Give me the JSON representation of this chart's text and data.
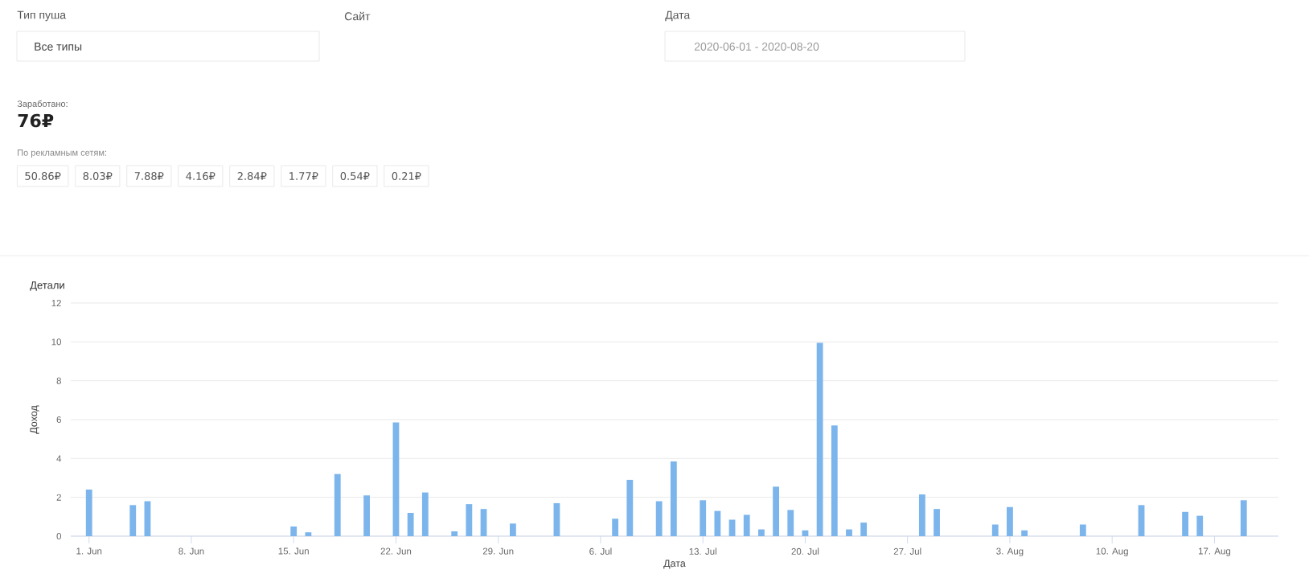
{
  "chart_data": [
    {
      "type": "other",
      "annotations": [
        "Тип пуша",
        "Все типы",
        "Сайт",
        "Дата",
        "2020-06-01 - 2020-08-20",
        "Заработано:",
        "76₽",
        "По рекламным сетям:",
        "50.86₽",
        "8.03₽",
        "7.88₽",
        "4.16₽",
        "2.84₽",
        "1.77₽",
        "0.54₽",
        "0.21₽",
        "Детали"
      ]
    },
    {
      "type": "bar",
      "xlabel": "Дата",
      "ylabel": "Доход",
      "x": [
        "2020-06-01",
        "2020-06-04",
        "2020-06-05",
        "2020-06-15",
        "2020-06-16",
        "2020-06-18",
        "2020-06-20",
        "2020-06-22",
        "2020-06-23",
        "2020-06-24",
        "2020-06-26",
        "2020-06-27",
        "2020-06-28",
        "2020-06-30",
        "2020-07-03",
        "2020-07-07",
        "2020-07-08",
        "2020-07-10",
        "2020-07-11",
        "2020-07-13",
        "2020-07-14",
        "2020-07-15",
        "2020-07-16",
        "2020-07-17",
        "2020-07-18",
        "2020-07-19",
        "2020-07-20",
        "2020-07-21",
        "2020-07-22",
        "2020-07-23",
        "2020-07-24",
        "2020-07-28",
        "2020-07-29",
        "2020-08-02",
        "2020-08-03",
        "2020-08-04",
        "2020-08-08",
        "2020-08-12",
        "2020-08-15",
        "2020-08-16",
        "2020-08-19"
      ],
      "values": [
        2.4,
        1.6,
        1.8,
        0.5,
        0.2,
        3.2,
        2.1,
        5.85,
        1.2,
        2.25,
        0.25,
        1.65,
        1.4,
        0.65,
        1.7,
        0.9,
        2.9,
        1.8,
        3.85,
        1.85,
        1.3,
        0.85,
        1.1,
        0.35,
        2.55,
        1.35,
        0.3,
        9.95,
        5.7,
        0.35,
        0.7,
        2.15,
        1.4,
        0.6,
        1.5,
        0.3,
        0.6,
        1.6,
        1.25,
        1.05,
        1.85
      ],
      "color": "#7cb5ec",
      "xlim": [
        "2020-05-30T18:00",
        "2020-08-21T09:00"
      ],
      "xticks": [
        {
          "value": "2020-06-01",
          "label": "1. Jun"
        },
        {
          "value": "2020-06-08",
          "label": "8. Jun"
        },
        {
          "value": "2020-06-15",
          "label": "15. Jun"
        },
        {
          "value": "2020-06-22",
          "label": "22. Jun"
        },
        {
          "value": "2020-06-29",
          "label": "29. Jun"
        },
        {
          "value": "2020-07-06",
          "label": "6. Jul"
        },
        {
          "value": "2020-07-13",
          "label": "13. Jul"
        },
        {
          "value": "2020-07-20",
          "label": "20. Jul"
        },
        {
          "value": "2020-07-27",
          "label": "27. Jul"
        },
        {
          "value": "2020-08-03",
          "label": "3. Aug"
        },
        {
          "value": "2020-08-10",
          "label": "10. Aug"
        },
        {
          "value": "2020-08-17",
          "label": "17. Aug"
        }
      ],
      "ylim": [
        0,
        12
      ],
      "yticks": [
        0,
        2,
        4,
        6,
        8,
        10,
        12
      ],
      "grid": "y"
    }
  ]
}
